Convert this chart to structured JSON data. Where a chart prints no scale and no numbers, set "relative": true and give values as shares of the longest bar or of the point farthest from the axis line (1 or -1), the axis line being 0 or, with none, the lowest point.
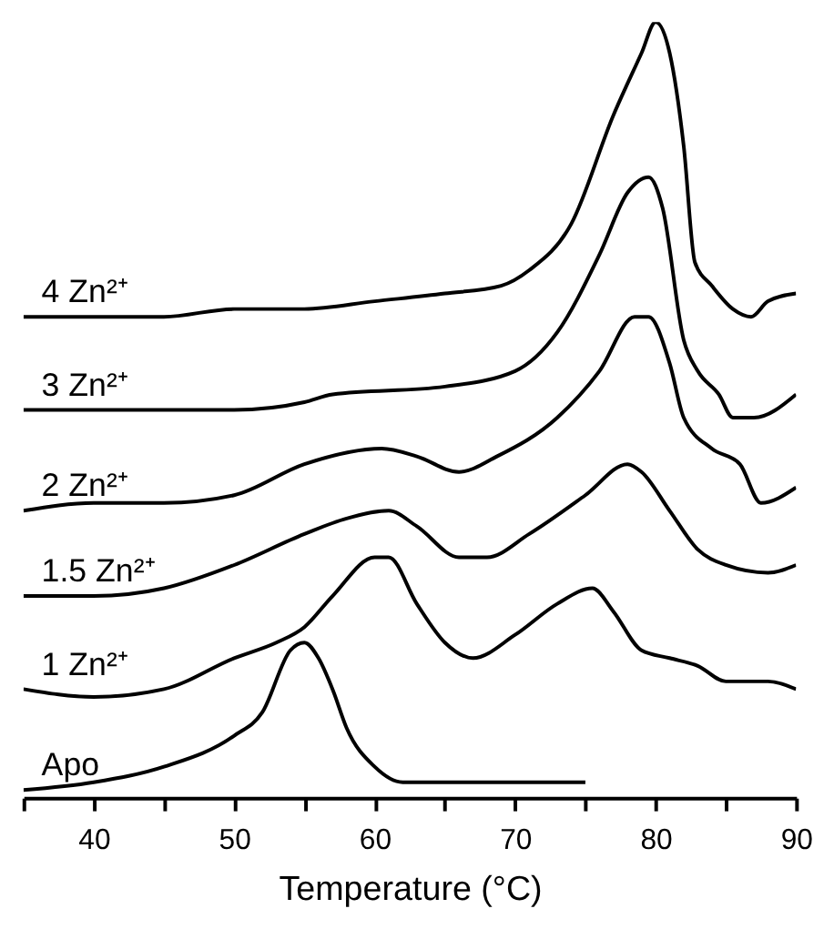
{
  "chart_data": {
    "type": "line",
    "relative": true,
    "xlabel": "Temperature (°C)",
    "xlim": [
      35,
      90
    ],
    "xticks": [
      {
        "value": 35,
        "label": null
      },
      40,
      {
        "value": 45,
        "label": null
      },
      50,
      {
        "value": 55,
        "label": null
      },
      60,
      {
        "value": 65,
        "label": null
      },
      70,
      {
        "value": 75,
        "label": null
      },
      80,
      {
        "value": 85,
        "label": null
      },
      90
    ],
    "grid": false,
    "legend": false,
    "marker": "none",
    "line_style": "solid",
    "series": [
      {
        "name": "Apo",
        "color": "#000000",
        "x": [
          35,
          40,
          45,
          50,
          52,
          54,
          55,
          56,
          57,
          58,
          60,
          62,
          65,
          70,
          75
        ],
        "values": [
          0.01,
          0.02,
          0.04,
          0.08,
          0.11,
          0.19,
          0.2,
          0.18,
          0.14,
          0.09,
          0.04,
          0.02,
          0.02,
          0.02,
          0.02
        ]
      },
      {
        "name": "1 Zn²⁺",
        "color": "#000000",
        "x": [
          35,
          40,
          45,
          50,
          53,
          55,
          57,
          60,
          61,
          63,
          65,
          67,
          70,
          73,
          75.5,
          77,
          79,
          81,
          83,
          85,
          88,
          90
        ],
        "values": [
          0.14,
          0.13,
          0.14,
          0.18,
          0.2,
          0.22,
          0.26,
          0.31,
          0.31,
          0.25,
          0.2,
          0.18,
          0.21,
          0.25,
          0.27,
          0.24,
          0.19,
          0.18,
          0.17,
          0.15,
          0.15,
          0.14
        ]
      },
      {
        "name": "1.5 Zn²⁺",
        "color": "#000000",
        "x": [
          35,
          40,
          45,
          50,
          55,
          58,
          61,
          63,
          66,
          68,
          71,
          75,
          78,
          79,
          81,
          83,
          85,
          88,
          90
        ],
        "values": [
          0.26,
          0.26,
          0.27,
          0.3,
          0.34,
          0.36,
          0.37,
          0.35,
          0.31,
          0.31,
          0.34,
          0.39,
          0.43,
          0.42,
          0.37,
          0.32,
          0.3,
          0.29,
          0.3
        ]
      },
      {
        "name": "2 Zn²⁺",
        "color": "#000000",
        "x": [
          35,
          40,
          45,
          50,
          55,
          60.5,
          63,
          66,
          68.7,
          73,
          76,
          78.5,
          79.5,
          81,
          82,
          84,
          86,
          87.5,
          90
        ],
        "values": [
          0.37,
          0.38,
          0.38,
          0.39,
          0.43,
          0.45,
          0.44,
          0.42,
          0.44,
          0.49,
          0.55,
          0.62,
          0.62,
          0.56,
          0.49,
          0.45,
          0.43,
          0.38,
          0.4
        ]
      },
      {
        "name": "3 Zn²⁺",
        "color": "#000000",
        "x": [
          35,
          45,
          50,
          55,
          57,
          65,
          70,
          73,
          76,
          78,
          79.5,
          80.5,
          82,
          83,
          84.5,
          85.5,
          87,
          90
        ],
        "values": [
          0.5,
          0.5,
          0.5,
          0.51,
          0.52,
          0.53,
          0.55,
          0.6,
          0.7,
          0.78,
          0.8,
          0.76,
          0.59,
          0.55,
          0.52,
          0.49,
          0.49,
          0.52
        ]
      },
      {
        "name": "4 Zn²⁺",
        "color": "#000000",
        "x": [
          35,
          45,
          50,
          55,
          60,
          65,
          69,
          71,
          74,
          77,
          79,
          80,
          81,
          82,
          82.8,
          84,
          85.5,
          86.8,
          88,
          90
        ],
        "values": [
          0.62,
          0.62,
          0.63,
          0.63,
          0.64,
          0.65,
          0.66,
          0.68,
          0.74,
          0.88,
          0.96,
          1.0,
          0.96,
          0.84,
          0.69,
          0.66,
          0.63,
          0.62,
          0.64,
          0.65
        ]
      }
    ]
  }
}
